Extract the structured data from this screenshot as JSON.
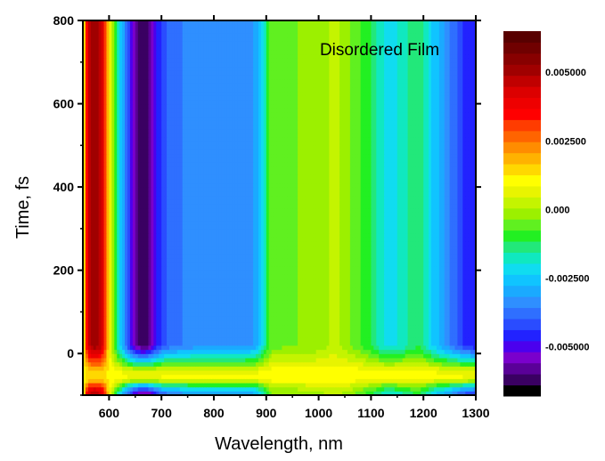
{
  "chart_data": {
    "type": "heatmap",
    "annotation": "Disordered Film",
    "xlabel": "Wavelength, nm",
    "ylabel": "Time, fs",
    "xlim": [
      550,
      1300
    ],
    "ylim": [
      -100,
      800
    ],
    "xticks": [
      600,
      700,
      800,
      900,
      1000,
      1100,
      1200,
      1300
    ],
    "yticks": [
      0,
      200,
      400,
      600,
      800
    ],
    "colorbar": {
      "range": [
        -0.0068,
        0.0065
      ],
      "labels": [
        "0.005000",
        "0.002500",
        "0.000",
        "-0.002500",
        "-0.005000"
      ],
      "label_values": [
        0.005,
        0.0025,
        0.0,
        -0.0025,
        -0.005
      ],
      "colors": [
        "#000000",
        "#3a0062",
        "#5a0098",
        "#7a00cc",
        "#4b00ee",
        "#2222ff",
        "#2a4cff",
        "#2f6fff",
        "#2f8fff",
        "#1aaaff",
        "#10c4ff",
        "#10dcf0",
        "#10e8c0",
        "#22e87a",
        "#22f022",
        "#60f020",
        "#9cf000",
        "#c4f400",
        "#e8f400",
        "#ffff00",
        "#ffd800",
        "#ffb200",
        "#ff8c00",
        "#ff6400",
        "#ff3c00",
        "#ff0000",
        "#ee0000",
        "#dc0000",
        "#c00000",
        "#a00000",
        "#880000",
        "#700000",
        "#580000"
      ]
    },
    "spectrum_profile": {
      "wavelength_nm": [
        550,
        560,
        570,
        580,
        590,
        600,
        615,
        630,
        645,
        660,
        672,
        685,
        700,
        720,
        750,
        800,
        850,
        880,
        895,
        910,
        950,
        1000,
        1030,
        1060,
        1100,
        1130,
        1160,
        1190,
        1220,
        1250,
        1280,
        1300
      ],
      "delta_value": [
        0.0005,
        0.0045,
        0.0052,
        0.005,
        0.004,
        0.001,
        -0.0015,
        -0.0035,
        -0.0052,
        -0.0062,
        -0.0062,
        -0.0053,
        -0.0042,
        -0.0038,
        -0.0035,
        -0.0033,
        -0.0034,
        -0.0031,
        -0.0018,
        -0.0005,
        -0.0004,
        -0.0002,
        0.0002,
        -0.0003,
        -0.0012,
        -0.0022,
        -0.0018,
        -0.0012,
        -0.0025,
        -0.0035,
        -0.0045,
        -0.0048
      ]
    },
    "early_time_feature": {
      "time_fs": [
        -100,
        -80,
        -60,
        -40,
        -20,
        0,
        20
      ],
      "weight": [
        0.0,
        0.35,
        0.95,
        0.9,
        0.55,
        0.25,
        0.0
      ]
    },
    "grid": false,
    "legend": "colorbar-right"
  }
}
